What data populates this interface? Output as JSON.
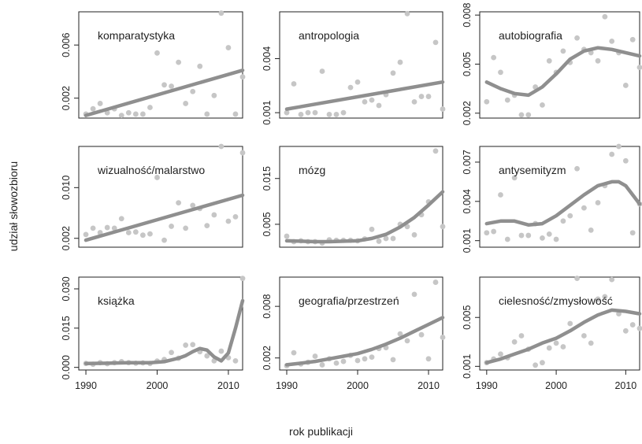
{
  "figure": {
    "ylabel": "udział słowozbioru",
    "xlabel": "rok publikacji"
  },
  "colors": {
    "points": "#c6c6c6",
    "line": "#8f8f8f",
    "axis": "#222222"
  },
  "chart_data": [
    {
      "type": "scatter",
      "title": "komparatystyka",
      "xlim": [
        1989,
        2012
      ],
      "ylim": [
        0.0005,
        0.0085
      ],
      "yticks": [
        0.002,
        0.006
      ],
      "yticklabels": [
        "0.002",
        "0.006"
      ],
      "xticks": [],
      "x": [
        1990,
        1991,
        1992,
        1993,
        1994,
        1995,
        1996,
        1997,
        1998,
        1999,
        2000,
        2001,
        2002,
        2003,
        2004,
        2005,
        2006,
        2007,
        2008,
        2009,
        2010,
        2011,
        2012
      ],
      "y": [
        0.0008,
        0.0012,
        0.0016,
        0.0009,
        0.0012,
        0.0007,
        0.0009,
        0.0008,
        0.0008,
        0.0013,
        0.0054,
        0.003,
        0.0029,
        0.0047,
        0.0016,
        0.0025,
        0.0044,
        0.0008,
        0.0022,
        0.0084,
        0.0058,
        0.0008,
        0.0036
      ],
      "trend": {
        "x": [
          1990,
          2012
        ],
        "y": [
          0.0007,
          0.0041
        ]
      }
    },
    {
      "type": "scatter",
      "title": "antropologia",
      "xlim": [
        1989,
        2012
      ],
      "ylim": [
        0.0007,
        0.0066
      ],
      "yticks": [
        0.001,
        0.004
      ],
      "yticklabels": [
        "0.001",
        "0.004"
      ],
      "xticks": [],
      "x": [
        1990,
        1991,
        1992,
        1993,
        1994,
        1995,
        1996,
        1997,
        1998,
        1999,
        2000,
        2001,
        2002,
        2003,
        2004,
        2005,
        2006,
        2007,
        2008,
        2009,
        2010,
        2011,
        2012
      ],
      "y": [
        0.001,
        0.0026,
        0.0009,
        0.001,
        0.001,
        0.0033,
        0.0009,
        0.0009,
        0.001,
        0.0024,
        0.0027,
        0.0016,
        0.0017,
        0.0014,
        0.002,
        0.0032,
        0.0038,
        0.0065,
        0.0016,
        0.0019,
        0.0019,
        0.0049,
        0.0012
      ],
      "trend": {
        "x": [
          1990,
          2012
        ],
        "y": [
          0.0012,
          0.0027
        ]
      }
    },
    {
      "type": "scatter",
      "title": "autobiografia",
      "xlim": [
        1989,
        2012
      ],
      "ylim": [
        0.0017,
        0.0082
      ],
      "yticks": [
        0.002,
        0.005,
        0.008
      ],
      "yticklabels": [
        "0.002",
        "0.005",
        "0.008"
      ],
      "xticks": [],
      "x": [
        1990,
        1991,
        1992,
        1993,
        1994,
        1995,
        1996,
        1997,
        1998,
        1999,
        2000,
        2001,
        2002,
        2003,
        2004,
        2005,
        2006,
        2007,
        2008,
        2009,
        2010,
        2011,
        2012
      ],
      "y": [
        0.0027,
        0.0054,
        0.0045,
        0.0028,
        0.0031,
        0.0019,
        0.0019,
        0.0036,
        0.0025,
        0.0052,
        0.0045,
        0.0058,
        0.0051,
        0.0066,
        0.0059,
        0.0057,
        0.0052,
        0.0079,
        0.0064,
        0.0057,
        0.0037,
        0.0065,
        0.0048
      ],
      "trend": {
        "x": [
          1990,
          1992,
          1994,
          1996,
          1998,
          2000,
          2002,
          2004,
          2006,
          2008,
          2010,
          2012
        ],
        "y": [
          0.0039,
          0.0035,
          0.0032,
          0.0031,
          0.0036,
          0.0044,
          0.0053,
          0.0058,
          0.006,
          0.0059,
          0.0057,
          0.0055
        ]
      }
    },
    {
      "type": "scatter",
      "title": "wizualność/malarstwo",
      "xlim": [
        1989,
        2012
      ],
      "ylim": [
        0.0006,
        0.0165
      ],
      "yticks": [
        0.002,
        0.01
      ],
      "yticklabels": [
        "0.002",
        "0.010"
      ],
      "xticks": [],
      "x": [
        1990,
        1991,
        1992,
        1993,
        1994,
        1995,
        1996,
        1997,
        1998,
        1999,
        2000,
        2001,
        2002,
        2003,
        2004,
        2005,
        2006,
        2007,
        2008,
        2009,
        2010,
        2011,
        2012
      ],
      "y": [
        0.0026,
        0.0036,
        0.0029,
        0.0037,
        0.0036,
        0.0051,
        0.0029,
        0.003,
        0.0025,
        0.0027,
        0.0116,
        0.0017,
        0.0039,
        0.0076,
        0.0036,
        0.0072,
        0.0067,
        0.004,
        0.0057,
        0.0165,
        0.0047,
        0.0054,
        0.0155
      ],
      "trend": {
        "x": [
          1990,
          2012
        ],
        "y": [
          0.0017,
          0.0088
        ]
      }
    },
    {
      "type": "scatter",
      "title": "mózg",
      "xlim": [
        1989,
        2012
      ],
      "ylim": [
        0.0,
        0.022
      ],
      "yticks": [
        0.005,
        0.015
      ],
      "yticklabels": [
        "0.005",
        "0.015"
      ],
      "xticks": [],
      "x": [
        1990,
        1991,
        1992,
        1993,
        1994,
        1995,
        1996,
        1997,
        1998,
        1999,
        2000,
        2001,
        2002,
        2003,
        2004,
        2005,
        2006,
        2007,
        2008,
        2009,
        2010,
        2011,
        2012
      ],
      "y": [
        0.0024,
        0.0012,
        0.0014,
        0.0012,
        0.0012,
        0.0009,
        0.0016,
        0.0015,
        0.0015,
        0.0015,
        0.0014,
        0.0018,
        0.0039,
        0.0013,
        0.0019,
        0.0019,
        0.005,
        0.0045,
        0.0027,
        0.0071,
        0.0099,
        0.021,
        0.0045
      ],
      "trend": {
        "x": [
          1990,
          1992,
          1994,
          1996,
          1998,
          2000,
          2002,
          2004,
          2006,
          2008,
          2010,
          2012
        ],
        "y": [
          0.0014,
          0.0013,
          0.0012,
          0.0012,
          0.0013,
          0.0014,
          0.0019,
          0.0028,
          0.0044,
          0.0065,
          0.0092,
          0.0121
        ]
      }
    },
    {
      "type": "scatter",
      "title": "antysemityzm",
      "xlim": [
        1989,
        2012
      ],
      "ylim": [
        0.0005,
        0.0082
      ],
      "yticks": [
        0.001,
        0.004,
        0.007
      ],
      "yticklabels": [
        "0.001",
        "0.004",
        "0.007"
      ],
      "xticks": [],
      "x": [
        1990,
        1991,
        1992,
        1993,
        1994,
        1995,
        1996,
        1997,
        1998,
        1999,
        2000,
        2001,
        2002,
        2003,
        2004,
        2005,
        2006,
        2007,
        2008,
        2009,
        2010,
        2011,
        2012
      ],
      "y": [
        0.0016,
        0.0017,
        0.0045,
        0.0011,
        0.0058,
        0.0014,
        0.0014,
        0.0023,
        0.0012,
        0.0015,
        0.0011,
        0.0025,
        0.0029,
        0.0065,
        0.0035,
        0.0018,
        0.0039,
        0.0052,
        0.0076,
        0.0082,
        0.0071,
        0.0016,
        0.0038
      ],
      "trend": {
        "x": [
          1990,
          1992,
          1994,
          1996,
          1998,
          2000,
          2002,
          2004,
          2006,
          2008,
          2009,
          2010,
          2012
        ],
        "y": [
          0.0023,
          0.0025,
          0.0025,
          0.0022,
          0.0023,
          0.0029,
          0.0037,
          0.0045,
          0.0052,
          0.0055,
          0.0055,
          0.0052,
          0.0038
        ]
      }
    },
    {
      "type": "scatter",
      "title": "książka",
      "xlim": [
        1989,
        2012
      ],
      "ylim": [
        -0.001,
        0.0345
      ],
      "yticks": [
        0.0,
        0.015,
        0.03
      ],
      "yticklabels": [
        "0.000",
        "0.015",
        "0.030"
      ],
      "xticks": [
        1990,
        2000,
        2010
      ],
      "xticklabels": [
        "1990",
        "2000",
        "2010"
      ],
      "x": [
        1990,
        1991,
        1992,
        1993,
        1994,
        1995,
        1996,
        1997,
        1998,
        1999,
        2000,
        2001,
        2002,
        2003,
        2004,
        2005,
        2006,
        2007,
        2008,
        2009,
        2010,
        2011,
        2012
      ],
      "y": [
        0.0015,
        0.0012,
        0.0018,
        0.0014,
        0.0018,
        0.0022,
        0.0018,
        0.0016,
        0.0017,
        0.0015,
        0.0024,
        0.003,
        0.0057,
        0.0035,
        0.0085,
        0.0087,
        0.006,
        0.0044,
        0.0025,
        0.0062,
        0.0037,
        0.0025,
        0.034
      ],
      "trend": {
        "x": [
          1990,
          1993,
          1996,
          1999,
          2001,
          2003,
          2004,
          2005,
          2006,
          2007,
          2008,
          2009,
          2010,
          2011,
          2012
        ],
        "y": [
          0.0015,
          0.0016,
          0.0018,
          0.0018,
          0.0022,
          0.0035,
          0.0045,
          0.006,
          0.0072,
          0.0066,
          0.004,
          0.0025,
          0.0055,
          0.015,
          0.0255
        ]
      }
    },
    {
      "type": "scatter",
      "title": "geografia/przestrzeń",
      "xlim": [
        1989,
        2012
      ],
      "ylim": [
        0.0006,
        0.0114
      ],
      "yticks": [
        0.002,
        0.008
      ],
      "yticklabels": [
        "0.002",
        "0.008"
      ],
      "xticks": [
        1990,
        2000,
        2010
      ],
      "xticklabels": [
        "1990",
        "2000",
        "2010"
      ],
      "x": [
        1990,
        1991,
        1992,
        1993,
        1994,
        1995,
        1996,
        1997,
        1998,
        1999,
        2000,
        2001,
        2002,
        2003,
        2004,
        2005,
        2006,
        2007,
        2008,
        2009,
        2010,
        2011,
        2012
      ],
      "y": [
        0.0011,
        0.0026,
        0.0013,
        0.0015,
        0.0022,
        0.0012,
        0.0019,
        0.0014,
        0.0016,
        0.0023,
        0.0017,
        0.0019,
        0.0021,
        0.0031,
        0.0032,
        0.0018,
        0.0048,
        0.004,
        0.0094,
        0.0047,
        0.0019,
        0.0108,
        0.0044
      ],
      "trend": {
        "x": [
          1990,
          1992,
          1994,
          1996,
          1998,
          2000,
          2002,
          2004,
          2006,
          2008,
          2010,
          2012
        ],
        "y": [
          0.0012,
          0.0014,
          0.0016,
          0.0019,
          0.0022,
          0.0025,
          0.003,
          0.0036,
          0.0043,
          0.0051,
          0.0059,
          0.0067
        ]
      }
    },
    {
      "type": "scatter",
      "title": "cielesność/zmysłowość",
      "xlim": [
        1989,
        2012
      ],
      "ylim": [
        0.0007,
        0.0083
      ],
      "yticks": [
        0.001,
        0.005
      ],
      "yticklabels": [
        "0.001",
        "0.005"
      ],
      "xticks": [
        1990,
        2000,
        2010
      ],
      "xticklabels": [
        "1990",
        "2000",
        "2010"
      ],
      "x": [
        1990,
        1991,
        1992,
        1993,
        1994,
        1995,
        1996,
        1997,
        1998,
        1999,
        2000,
        2001,
        2002,
        2003,
        2004,
        2005,
        2006,
        2007,
        2008,
        2009,
        2010,
        2011,
        2012
      ],
      "y": [
        0.0013,
        0.0016,
        0.002,
        0.0017,
        0.003,
        0.0035,
        0.0024,
        0.0011,
        0.0013,
        0.0025,
        0.0029,
        0.0026,
        0.0045,
        0.0082,
        0.0035,
        0.0029,
        0.0065,
        0.0067,
        0.0081,
        0.0053,
        0.0039,
        0.0044,
        0.0041
      ],
      "trend": {
        "x": [
          1990,
          1992,
          1994,
          1996,
          1998,
          2000,
          2002,
          2004,
          2006,
          2008,
          2010,
          2012
        ],
        "y": [
          0.0013,
          0.0016,
          0.002,
          0.0024,
          0.0029,
          0.0033,
          0.0039,
          0.0046,
          0.0052,
          0.0056,
          0.0055,
          0.0053
        ]
      }
    }
  ]
}
